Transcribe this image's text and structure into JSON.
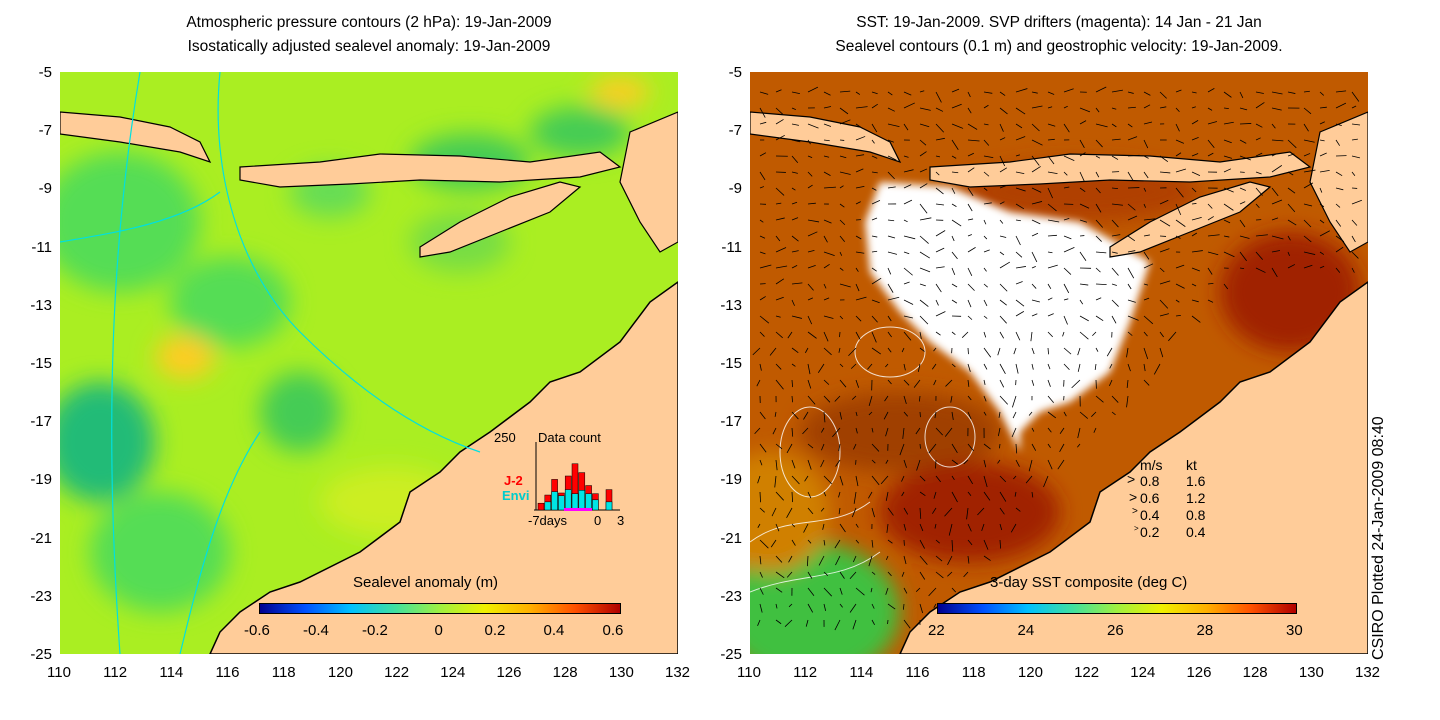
{
  "left_panel": {
    "title_line1": "Atmospheric pressure contours (2 hPa): 19-Jan-2009",
    "title_line2": "Isostatically adjusted sealevel anomaly: 19-Jan-2009",
    "colorbar_title": "Sealevel anomaly (m)",
    "colorbar_ticks": [
      "-0.6",
      "-0.4",
      "-0.2",
      "0",
      "0.2",
      "0.4",
      "0.6"
    ],
    "inset": {
      "count_max_label": "250",
      "title": "Data count",
      "series1": "J-2",
      "series2": "Envi",
      "x_left": "-7days",
      "x_mid": "0",
      "x_right": "3",
      "series1_color": "#ff0000",
      "series2_color": "#00e5e5",
      "window_color": "#ff00ff",
      "bars": [
        {
          "total": 0.1,
          "envi": 0.0
        },
        {
          "total": 0.22,
          "envi": 0.12
        },
        {
          "total": 0.45,
          "envi": 0.27
        },
        {
          "total": 0.25,
          "envi": 0.21
        },
        {
          "total": 0.5,
          "envi": 0.3
        },
        {
          "total": 0.68,
          "envi": 0.24
        },
        {
          "total": 0.55,
          "envi": 0.29
        },
        {
          "total": 0.36,
          "envi": 0.24
        },
        {
          "total": 0.24,
          "envi": 0.15
        },
        {
          "total": 0.0,
          "envi": 0.0
        },
        {
          "total": 0.3,
          "envi": 0.12
        },
        {
          "total": 0.0,
          "envi": 0.0
        }
      ]
    }
  },
  "right_panel": {
    "title_line1": "SST: 19-Jan-2009. SVP drifters (magenta): 14 Jan - 21 Jan",
    "title_line2": "Sealevel contours (0.1 m) and geostrophic velocity: 19-Jan-2009.",
    "colorbar_title": "3-day SST composite (deg C)",
    "colorbar_ticks": [
      "22",
      "24",
      "26",
      "28",
      "30"
    ],
    "speed_legend": {
      "header_ms": "m/s",
      "header_kt": "kt",
      "rows": [
        {
          "ms": "0.8",
          "kt": "1.6"
        },
        {
          "ms": "0.6",
          "kt": "1.2"
        },
        {
          "ms": "0.4",
          "kt": "0.8"
        },
        {
          "ms": "0.2",
          "kt": "0.4"
        }
      ]
    }
  },
  "axes": {
    "lat_labels": [
      "-5",
      "-7",
      "-9",
      "-11",
      "-13",
      "-15",
      "-17",
      "-19",
      "-21",
      "-23",
      "-25"
    ],
    "lon_labels": [
      "110",
      "112",
      "114",
      "116",
      "118",
      "120",
      "122",
      "124",
      "126",
      "128",
      "130",
      "132"
    ]
  },
  "watermark": "CSIRO Plotted 24-Jan-2009 08:40",
  "colors": {
    "land": "#ffcc99",
    "ocean_base_left": "#aaee22",
    "ocean_base_right": "#c05a00",
    "contour": "#00e0e0",
    "cloud": "#ffffff"
  }
}
